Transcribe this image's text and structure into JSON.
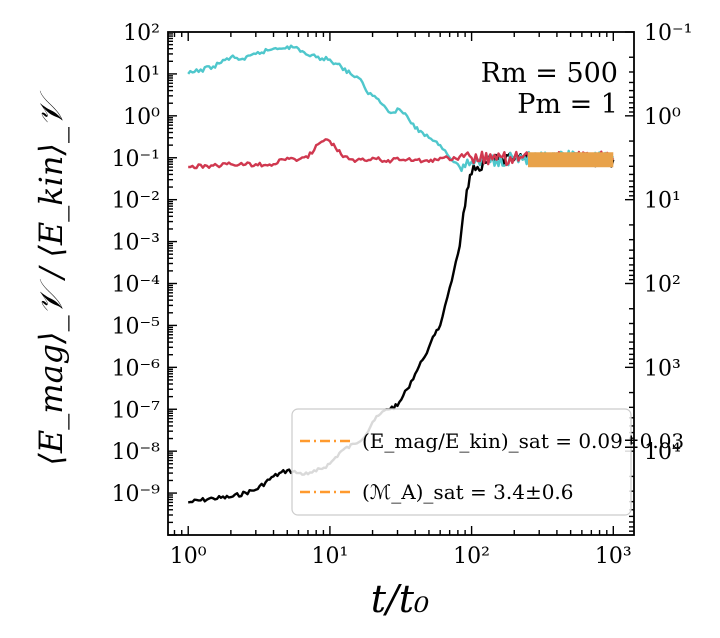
{
  "chart_data": {
    "type": "line",
    "x_scale": "log",
    "y_scale": "log",
    "xlim": [
      0.72,
      1400
    ],
    "ylim": [
      1e-10,
      100.0
    ],
    "y2lim": [
      100000.0,
      0.1
    ],
    "xlabel": "t/t₀",
    "ylabel": "⟨E_mag⟩_𝒱 / ⟨E_kin⟩_𝒱",
    "x_ticks": [
      {
        "v": 1,
        "l": "10⁰"
      },
      {
        "v": 10,
        "l": "10¹"
      },
      {
        "v": 100,
        "l": "10²"
      },
      {
        "v": 1000,
        "l": "10³"
      }
    ],
    "y_ticks": [
      {
        "v": 100.0,
        "l": "10²"
      },
      {
        "v": 10.0,
        "l": "10¹"
      },
      {
        "v": 1.0,
        "l": "10⁰"
      },
      {
        "v": 0.1,
        "l": "10⁻¹"
      },
      {
        "v": 0.01,
        "l": "10⁻²"
      },
      {
        "v": 0.001,
        "l": "10⁻³"
      },
      {
        "v": 0.0001,
        "l": "10⁻⁴"
      },
      {
        "v": 1e-05,
        "l": "10⁻⁵"
      },
      {
        "v": 1e-06,
        "l": "10⁻⁶"
      },
      {
        "v": 1e-07,
        "l": "10⁻⁷"
      },
      {
        "v": 1e-08,
        "l": "10⁻⁸"
      },
      {
        "v": 1e-09,
        "l": "10⁻⁹"
      }
    ],
    "y2_ticks": [
      {
        "v": 0.1,
        "l": "10⁻¹"
      },
      {
        "v": 1,
        "l": "10⁰"
      },
      {
        "v": 10,
        "l": "10¹"
      },
      {
        "v": 100,
        "l": "10²"
      },
      {
        "v": 1000,
        "l": "10³"
      },
      {
        "v": 10000,
        "l": "10⁴"
      }
    ],
    "annotations": [
      "Rm = 500",
      "Pm = 1"
    ],
    "legend": {
      "position": "lower-right",
      "entries": [
        {
          "label": "(E_mag/E_kin)_sat = 0.09±0.03",
          "color": "#ff9a2e",
          "style": "dash-dot"
        },
        {
          "label": "(ℳ_A)_sat = 3.4±0.6",
          "color": "#ff9a2e",
          "style": "dash-dot"
        }
      ]
    },
    "series": [
      {
        "color": "#000000",
        "axis": "left",
        "points": [
          [
            1,
            6e-10
          ],
          [
            1.5,
            7.5e-10
          ],
          [
            2,
            8e-10
          ],
          [
            3,
            1.2e-09
          ],
          [
            4,
            2.5e-09
          ],
          [
            5,
            3.5e-09
          ],
          [
            6,
            3e-09
          ],
          [
            7,
            2.8e-09
          ],
          [
            8,
            3.3e-09
          ],
          [
            10,
            5e-09
          ],
          [
            12,
            1e-08
          ],
          [
            15,
            1.5e-08
          ],
          [
            18,
            2.5e-08
          ],
          [
            20,
            5e-08
          ],
          [
            25,
            1e-07
          ],
          [
            30,
            1.2e-07
          ],
          [
            35,
            3e-07
          ],
          [
            40,
            7e-07
          ],
          [
            45,
            1.5e-06
          ],
          [
            50,
            3e-06
          ],
          [
            55,
            6e-06
          ],
          [
            60,
            1e-05
          ],
          [
            65,
            3e-05
          ],
          [
            70,
            8e-05
          ],
          [
            75,
            0.0002
          ],
          [
            80,
            0.0005
          ],
          [
            85,
            0.002
          ],
          [
            90,
            0.007
          ],
          [
            95,
            0.02
          ],
          [
            100,
            0.04
          ],
          [
            110,
            0.06
          ],
          [
            130,
            0.08
          ],
          [
            200,
            0.09
          ],
          [
            300,
            0.09
          ],
          [
            500,
            0.09
          ],
          [
            700,
            0.09
          ],
          [
            1000,
            0.09
          ]
        ]
      },
      {
        "color": "#4fc7cc",
        "axis": "left",
        "points": [
          [
            1,
            10
          ],
          [
            1.5,
            15
          ],
          [
            2,
            25
          ],
          [
            2.5,
            22
          ],
          [
            3,
            30
          ],
          [
            4,
            40
          ],
          [
            5,
            45
          ],
          [
            6,
            40
          ],
          [
            7,
            28
          ],
          [
            8,
            25
          ],
          [
            10,
            22
          ],
          [
            12,
            15
          ],
          [
            14,
            10
          ],
          [
            16,
            8
          ],
          [
            18,
            4
          ],
          [
            20,
            3
          ],
          [
            22,
            2.5
          ],
          [
            25,
            1.5
          ],
          [
            28,
            1.2
          ],
          [
            30,
            1.5
          ],
          [
            35,
            1
          ],
          [
            40,
            0.5
          ],
          [
            45,
            0.4
          ],
          [
            50,
            0.3
          ],
          [
            55,
            0.25
          ],
          [
            60,
            0.2
          ],
          [
            65,
            0.15
          ],
          [
            70,
            0.1
          ],
          [
            80,
            0.07
          ],
          [
            90,
            0.06
          ],
          [
            100,
            0.08
          ],
          [
            150,
            0.09
          ],
          [
            200,
            0.1
          ],
          [
            300,
            0.09
          ],
          [
            500,
            0.1
          ],
          [
            700,
            0.09
          ],
          [
            1000,
            0.1
          ]
        ]
      },
      {
        "color": "#d0384f",
        "axis": "left",
        "points": [
          [
            1,
            0.06
          ],
          [
            1.5,
            0.065
          ],
          [
            2,
            0.07
          ],
          [
            3,
            0.07
          ],
          [
            4,
            0.07
          ],
          [
            5,
            0.1
          ],
          [
            6,
            0.09
          ],
          [
            7,
            0.1
          ],
          [
            8,
            0.2
          ],
          [
            9,
            0.25
          ],
          [
            10,
            0.25
          ],
          [
            12,
            0.12
          ],
          [
            15,
            0.08
          ],
          [
            20,
            0.1
          ],
          [
            25,
            0.08
          ],
          [
            30,
            0.1
          ],
          [
            40,
            0.09
          ],
          [
            50,
            0.08
          ],
          [
            60,
            0.1
          ],
          [
            80,
            0.09
          ],
          [
            100,
            0.1
          ],
          [
            150,
            0.09
          ],
          [
            200,
            0.1
          ],
          [
            300,
            0.09
          ],
          [
            500,
            0.1
          ],
          [
            700,
            0.1
          ],
          [
            1000,
            0.09
          ]
        ]
      },
      {
        "color": "#e8a24a",
        "axis": "left",
        "points": [
          [
            250,
            0.09
          ],
          [
            1000,
            0.09
          ]
        ]
      }
    ]
  }
}
